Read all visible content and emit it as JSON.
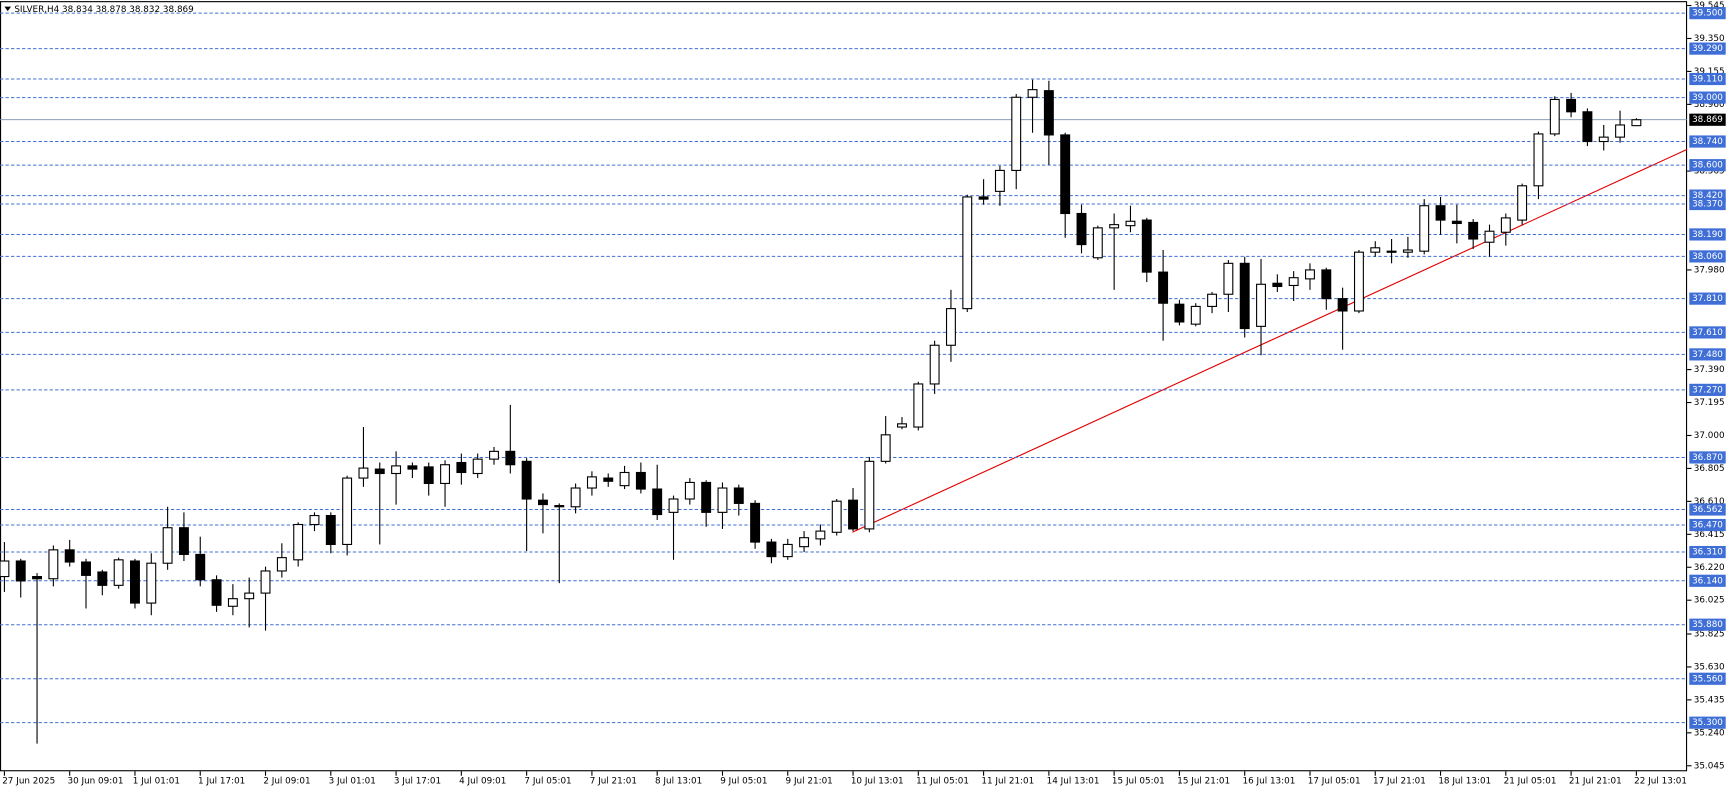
{
  "chart_data": {
    "type": "candlestick",
    "title": "SILVER,H4  38.834 38.878 38.832 38.869",
    "categories": [
      "27 Jun 2025",
      null,
      null,
      null,
      "30 Jun 09:01",
      null,
      null,
      null,
      "1 Jul 01:01",
      null,
      null,
      null,
      "1 Jul 17:01",
      null,
      null,
      null,
      "2 Jul 09:01",
      null,
      null,
      null,
      "3 Jul 01:01",
      null,
      null,
      null,
      "3 Jul 17:01",
      null,
      null,
      null,
      "4 Jul 09:01",
      null,
      null,
      null,
      "7 Jul 05:01",
      null,
      null,
      null,
      "7 Jul 21:01",
      null,
      null,
      null,
      "8 Jul 13:01",
      null,
      null,
      null,
      "9 Jul 05:01",
      null,
      null,
      null,
      "9 Jul 21:01",
      null,
      null,
      null,
      "10 Jul 13:01",
      null,
      null,
      null,
      "11 Jul 05:01",
      null,
      null,
      null,
      "11 Jul 21:01",
      null,
      null,
      null,
      "14 Jul 13:01",
      null,
      null,
      null,
      "15 Jul 05:01",
      null,
      null,
      null,
      "15 Jul 21:01",
      null,
      null,
      null,
      "16 Jul 13:01",
      null,
      null,
      null,
      "17 Jul 05:01",
      null,
      null,
      null,
      "17 Jul 21:01",
      null,
      null,
      null,
      "18 Jul 13:01",
      null,
      null,
      null,
      "21 Jul 05:01",
      null,
      null,
      null,
      "21 Jul 21:01",
      null,
      null,
      null,
      "22 Jul 13:01"
    ],
    "open": [
      36.165,
      36.257,
      36.165,
      36.152,
      36.323,
      36.251,
      36.192,
      36.113,
      36.257,
      36.008,
      36.244,
      36.454,
      36.296,
      36.146,
      35.989,
      36.034,
      36.067,
      36.198,
      36.264,
      36.473,
      36.526,
      36.355,
      36.748,
      36.801,
      36.775,
      36.82,
      36.814,
      36.716,
      36.84,
      36.775,
      36.86,
      36.906,
      36.847,
      36.617,
      36.585,
      36.578,
      36.689,
      36.748,
      36.703,
      36.781,
      36.683,
      36.545,
      36.624,
      36.722,
      36.545,
      36.689,
      36.598,
      36.369,
      36.283,
      36.342,
      36.388,
      36.427,
      36.617,
      36.447,
      36.847,
      37.05,
      37.05,
      37.305,
      37.534,
      37.751,
      38.412,
      38.445,
      38.569,
      39.002,
      39.041,
      38.779,
      38.314,
      38.052,
      38.229,
      38.242,
      38.275,
      37.967,
      37.777,
      37.659,
      37.764,
      37.836,
      38.019,
      37.646,
      37.901,
      37.888,
      37.927,
      37.98,
      37.81,
      37.737,
      38.085,
      38.091,
      38.085,
      38.091,
      38.36,
      38.268,
      38.261,
      38.144,
      38.203,
      38.275,
      38.478,
      38.785,
      38.989,
      38.916,
      38.74,
      38.766,
      38.834
    ],
    "high": [
      36.369,
      36.27,
      36.185,
      36.349,
      36.382,
      36.27,
      36.205,
      36.277,
      36.27,
      36.303,
      36.578,
      36.545,
      36.401,
      36.172,
      36.12,
      36.159,
      36.224,
      36.362,
      36.486,
      36.545,
      36.545,
      36.762,
      37.05,
      36.84,
      36.906,
      36.84,
      36.84,
      36.853,
      36.893,
      36.893,
      36.932,
      37.181,
      36.866,
      36.657,
      36.598,
      36.716,
      36.788,
      36.775,
      36.82,
      36.84,
      36.827,
      36.644,
      36.748,
      36.735,
      36.722,
      36.709,
      36.617,
      36.388,
      36.388,
      36.434,
      36.473,
      36.624,
      36.689,
      36.873,
      37.115,
      37.109,
      37.318,
      37.561,
      37.862,
      38.425,
      38.517,
      38.596,
      39.021,
      39.106,
      39.1,
      38.792,
      38.366,
      38.242,
      38.314,
      38.36,
      38.288,
      38.098,
      37.803,
      37.783,
      37.849,
      38.039,
      38.058,
      38.045,
      37.954,
      37.973,
      38.019,
      37.993,
      37.875,
      38.098,
      38.15,
      38.163,
      38.176,
      38.399,
      38.412,
      38.366,
      38.281,
      38.248,
      38.314,
      38.491,
      38.799,
      39.008,
      39.028,
      38.936,
      38.838,
      38.923,
      38.878
    ],
    "low": [
      36.074,
      36.041,
      35.176,
      36.107,
      36.224,
      35.976,
      36.054,
      36.093,
      35.976,
      35.936,
      36.205,
      36.257,
      36.107,
      35.956,
      35.936,
      35.864,
      35.845,
      36.159,
      36.224,
      36.434,
      36.303,
      36.29,
      36.696,
      36.355,
      36.591,
      36.748,
      36.644,
      36.578,
      36.709,
      36.748,
      36.827,
      36.775,
      36.316,
      36.421,
      36.126,
      36.539,
      36.644,
      36.696,
      36.683,
      36.657,
      36.5,
      36.264,
      36.591,
      36.46,
      36.447,
      36.526,
      36.329,
      36.244,
      36.264,
      36.31,
      36.349,
      36.408,
      36.434,
      36.427,
      36.834,
      37.037,
      37.03,
      37.246,
      37.436,
      37.731,
      38.366,
      38.36,
      38.458,
      38.792,
      38.602,
      38.17,
      38.078,
      38.039,
      37.862,
      38.203,
      37.908,
      37.561,
      37.652,
      37.646,
      37.724,
      37.731,
      37.58,
      37.475,
      37.849,
      37.796,
      37.862,
      37.744,
      37.508,
      37.724,
      38.058,
      38.019,
      38.052,
      38.072,
      38.189,
      38.137,
      38.104,
      38.058,
      38.124,
      38.248,
      38.399,
      38.772,
      38.884,
      38.713,
      38.687,
      38.733,
      38.832
    ],
    "close": [
      36.257,
      36.139,
      36.152,
      36.323,
      36.251,
      36.172,
      36.113,
      36.264,
      36.008,
      36.244,
      36.454,
      36.296,
      36.146,
      35.995,
      36.034,
      36.067,
      36.198,
      36.277,
      36.473,
      36.526,
      36.355,
      36.748,
      36.807,
      36.775,
      36.82,
      36.801,
      36.716,
      36.827,
      36.781,
      36.86,
      36.906,
      36.827,
      36.624,
      36.591,
      36.578,
      36.689,
      36.755,
      36.729,
      36.781,
      36.683,
      36.532,
      36.624,
      36.722,
      36.545,
      36.689,
      36.598,
      36.369,
      36.283,
      36.355,
      36.395,
      36.434,
      36.611,
      36.447,
      36.847,
      37.004,
      37.069,
      37.305,
      37.534,
      37.751,
      38.412,
      38.399,
      38.569,
      39.002,
      39.047,
      38.779,
      38.314,
      38.13,
      38.229,
      38.248,
      38.268,
      37.967,
      37.783,
      37.672,
      37.764,
      37.836,
      38.019,
      37.633,
      37.895,
      37.882,
      37.934,
      37.98,
      37.81,
      37.737,
      38.085,
      38.111,
      38.085,
      38.098,
      38.36,
      38.275,
      38.255,
      38.163,
      38.209,
      38.288,
      38.478,
      38.785,
      38.989,
      38.916,
      38.74,
      38.766,
      38.838,
      38.869
    ],
    "up_color": "#ffffff",
    "down_color": "#000000",
    "ylim": [
      35.045,
      39.545
    ],
    "yticks": [
      39.545,
      {
        "value": 39.35,
        "label": "39.350"
      },
      39.155,
      {
        "value": 38.96,
        "label": "38.960"
      },
      38.565,
      {
        "value": 37.98,
        "label": "37.980"
      },
      {
        "value": 37.39,
        "label": "37.390"
      },
      37.195,
      {
        "value": 37,
        "label": "37.000"
      },
      36.805,
      {
        "value": 36.61,
        "label": "36.610"
      },
      36.415,
      {
        "value": 36.22,
        "label": "36.220"
      },
      36.025,
      35.825,
      {
        "value": 35.63,
        "label": "35.630"
      },
      35.435,
      {
        "value": 35.24,
        "label": "35.240"
      },
      35.045
    ],
    "levels": [
      {
        "value": 39.5,
        "label": "39.500"
      },
      {
        "value": 39.29,
        "label": "39.290"
      },
      {
        "value": 39.11,
        "label": "39.110"
      },
      {
        "value": 39,
        "label": "39.000"
      },
      {
        "value": 38.74,
        "label": "38.740"
      },
      {
        "value": 38.6,
        "label": "38.600"
      },
      {
        "value": 38.42,
        "label": "38.420"
      },
      {
        "value": 38.37,
        "label": "38.370"
      },
      {
        "value": 38.19,
        "label": "38.190"
      },
      {
        "value": 38.06,
        "label": "38.060"
      },
      {
        "value": 37.81,
        "label": "37.810"
      },
      {
        "value": 37.61,
        "label": "37.610"
      },
      {
        "value": 37.48,
        "label": "37.480"
      },
      {
        "value": 37.27,
        "label": "37.270"
      },
      {
        "value": 36.87,
        "label": "36.870"
      },
      36.562,
      {
        "value": 36.47,
        "label": "36.470"
      },
      {
        "value": 36.31,
        "label": "36.310"
      },
      {
        "value": 36.14,
        "label": "36.140"
      },
      {
        "value": 35.88,
        "label": "35.880"
      },
      {
        "value": 35.56,
        "label": "35.560"
      },
      {
        "value": 35.3,
        "label": "35.300"
      }
    ],
    "level_color": "#3f6fd6",
    "current_price": 38.869
  }
}
